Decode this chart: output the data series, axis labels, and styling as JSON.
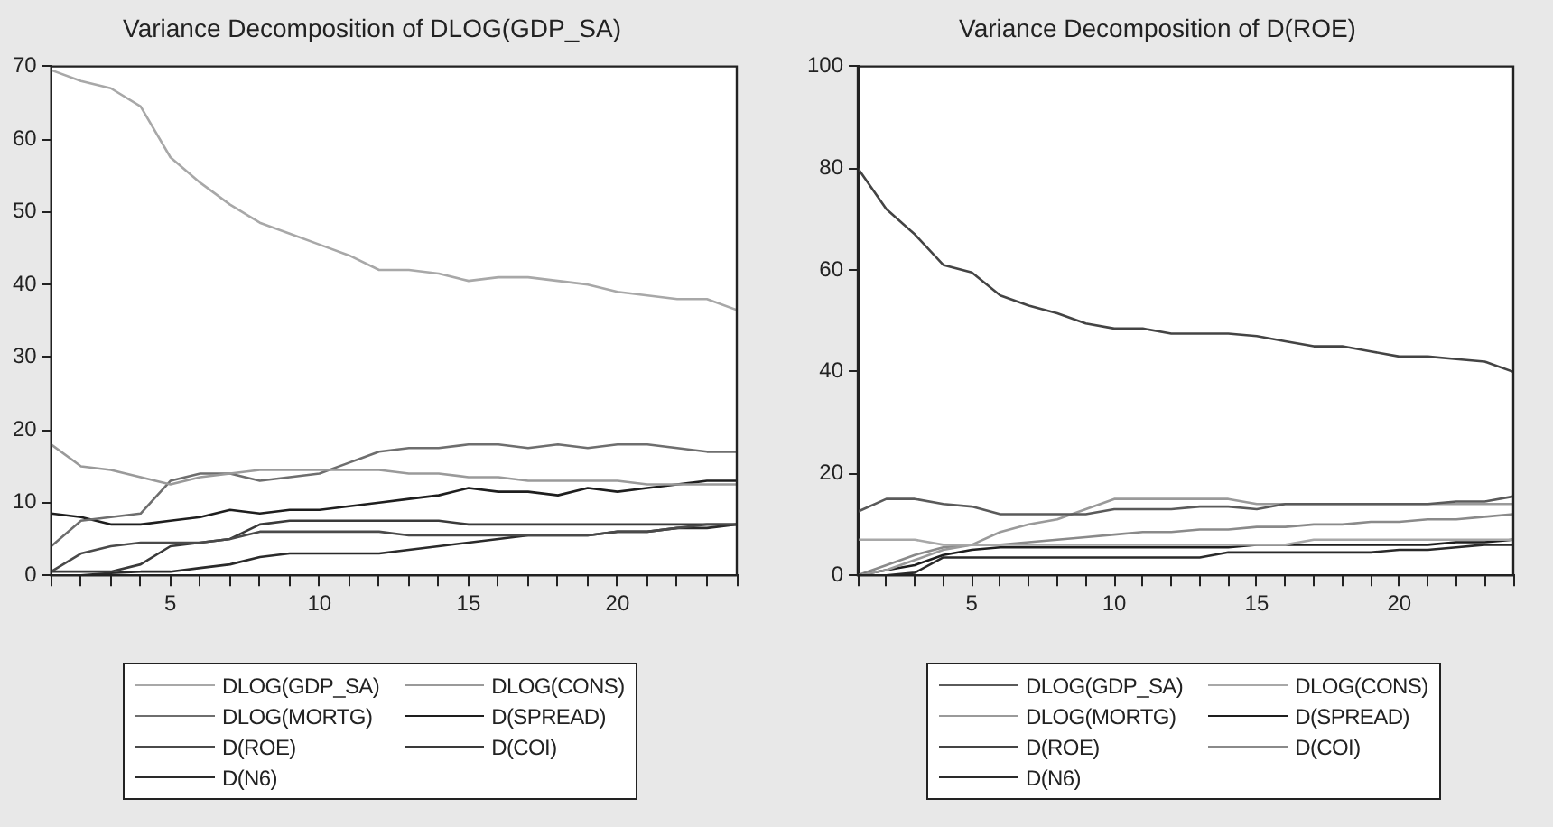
{
  "chart_data": [
    {
      "type": "line",
      "title": "Variance Decomposition of DLOG(GDP_SA)",
      "x": [
        1,
        2,
        3,
        4,
        5,
        6,
        7,
        8,
        9,
        10,
        11,
        12,
        13,
        14,
        15,
        16,
        17,
        18,
        19,
        20,
        21,
        22,
        23,
        24
      ],
      "xlim": [
        1,
        24
      ],
      "xticks": [
        {
          "value": 1,
          "label": null
        },
        {
          "value": 2,
          "label": null
        },
        {
          "value": 3,
          "label": null
        },
        {
          "value": 4,
          "label": null
        },
        5,
        {
          "value": 6,
          "label": null
        },
        {
          "value": 7,
          "label": null
        },
        {
          "value": 8,
          "label": null
        },
        {
          "value": 9,
          "label": null
        },
        10,
        {
          "value": 11,
          "label": null
        },
        {
          "value": 12,
          "label": null
        },
        {
          "value": 13,
          "label": null
        },
        {
          "value": 14,
          "label": null
        },
        15,
        {
          "value": 16,
          "label": null
        },
        {
          "value": 17,
          "label": null
        },
        {
          "value": 18,
          "label": null
        },
        {
          "value": 19,
          "label": null
        },
        20,
        {
          "value": 21,
          "label": null
        },
        {
          "value": 22,
          "label": null
        },
        {
          "value": 23,
          "label": null
        },
        {
          "value": 24,
          "label": null
        }
      ],
      "ylim": [
        0,
        70
      ],
      "yticks": [
        0,
        10,
        20,
        30,
        40,
        50,
        60,
        70
      ],
      "grid": false,
      "legend": "bottom",
      "series": [
        {
          "name": "DLOG(GDP_SA)",
          "color": "#a8a8a8",
          "values": [
            69.5,
            68,
            67,
            64.5,
            57.5,
            54,
            51,
            48.5,
            47,
            45.5,
            44,
            42,
            42,
            41.5,
            40.5,
            41,
            41,
            40.5,
            40,
            39,
            38.5,
            38,
            38,
            36.5
          ]
        },
        {
          "name": "DLOG(CONS)",
          "color": "#9a9a9a",
          "values": [
            18,
            15,
            14.5,
            13.5,
            12.5,
            13.5,
            14,
            14.5,
            14.5,
            14.5,
            14.5,
            14.5,
            14,
            14,
            13.5,
            13.5,
            13,
            13,
            13,
            13,
            12.5,
            12.5,
            12.5,
            12.5
          ]
        },
        {
          "name": "DLOG(MORTG)",
          "color": "#6e6e6e",
          "values": [
            4,
            7.5,
            8,
            8.5,
            13,
            14,
            14,
            13,
            13.5,
            14,
            15.5,
            17,
            17.5,
            17.5,
            18,
            18,
            17.5,
            18,
            17.5,
            18,
            18,
            17.5,
            17,
            17
          ]
        },
        {
          "name": "D(SPREAD)",
          "color": "#1e1e1e",
          "values": [
            8.5,
            8,
            7,
            7,
            7.5,
            8,
            9,
            8.5,
            9,
            9,
            9.5,
            10,
            10.5,
            11,
            12,
            11.5,
            11.5,
            11,
            12,
            11.5,
            12,
            12.5,
            13,
            13
          ]
        },
        {
          "name": "D(ROE)",
          "color": "#4a4a4a",
          "values": [
            0.5,
            3,
            4,
            4.5,
            4.5,
            4.5,
            5,
            6,
            6,
            6,
            6,
            6,
            5.5,
            5.5,
            5.5,
            5.5,
            5.5,
            5.5,
            5.5,
            6,
            6,
            6.5,
            7,
            7
          ]
        },
        {
          "name": "D(COI)",
          "color": "#3a3a3a",
          "values": [
            0.5,
            0.5,
            0.5,
            1.5,
            4,
            4.5,
            5,
            7,
            7.5,
            7.5,
            7.5,
            7.5,
            7.5,
            7.5,
            7,
            7,
            7,
            7,
            7,
            7,
            7,
            7,
            7,
            7
          ]
        },
        {
          "name": "D(N6)",
          "color": "#2a2a2a",
          "values": [
            0,
            0,
            0.3,
            0.5,
            0.5,
            1,
            1.5,
            2.5,
            3,
            3,
            3,
            3,
            3.5,
            4,
            4.5,
            5,
            5.5,
            5.5,
            5.5,
            6,
            6,
            6.5,
            6.5,
            7
          ]
        }
      ]
    },
    {
      "type": "line",
      "title": "Variance Decomposition of D(ROE)",
      "x": [
        1,
        2,
        3,
        4,
        5,
        6,
        7,
        8,
        9,
        10,
        11,
        12,
        13,
        14,
        15,
        16,
        17,
        18,
        19,
        20,
        21,
        22,
        23,
        24
      ],
      "xlim": [
        1,
        24
      ],
      "xticks": [
        {
          "value": 1,
          "label": null
        },
        {
          "value": 2,
          "label": null
        },
        {
          "value": 3,
          "label": null
        },
        {
          "value": 4,
          "label": null
        },
        5,
        {
          "value": 6,
          "label": null
        },
        {
          "value": 7,
          "label": null
        },
        {
          "value": 8,
          "label": null
        },
        {
          "value": 9,
          "label": null
        },
        10,
        {
          "value": 11,
          "label": null
        },
        {
          "value": 12,
          "label": null
        },
        {
          "value": 13,
          "label": null
        },
        {
          "value": 14,
          "label": null
        },
        15,
        {
          "value": 16,
          "label": null
        },
        {
          "value": 17,
          "label": null
        },
        {
          "value": 18,
          "label": null
        },
        {
          "value": 19,
          "label": null
        },
        20,
        {
          "value": 21,
          "label": null
        },
        {
          "value": 22,
          "label": null
        },
        {
          "value": 23,
          "label": null
        },
        {
          "value": 24,
          "label": null
        }
      ],
      "ylim": [
        0,
        100
      ],
      "yticks": [
        0,
        20,
        40,
        60,
        80,
        100
      ],
      "grid": false,
      "legend": "bottom",
      "series": [
        {
          "name": "DLOG(GDP_SA)",
          "color": "#5a5a5a",
          "values": [
            12.5,
            15,
            15,
            14,
            13.5,
            12,
            12,
            12,
            12,
            13,
            13,
            13,
            13.5,
            13.5,
            13,
            14,
            14,
            14,
            14,
            14,
            14,
            14.5,
            14.5,
            15.5
          ]
        },
        {
          "name": "DLOG(CONS)",
          "color": "#a8a8a8",
          "values": [
            7,
            7,
            7,
            6,
            6,
            6,
            6,
            6,
            6,
            6,
            6,
            6,
            6,
            6,
            6,
            6,
            7,
            7,
            7,
            7,
            7,
            7,
            7,
            7
          ]
        },
        {
          "name": "DLOG(MORTG)",
          "color": "#9a9a9a",
          "values": [
            0,
            1,
            3,
            5,
            6,
            8.5,
            10,
            11,
            13,
            15,
            15,
            15,
            15,
            15,
            14,
            14,
            14,
            14,
            14,
            14,
            14,
            14,
            14,
            14
          ]
        },
        {
          "name": "D(SPREAD)",
          "color": "#1e1e1e",
          "values": [
            0,
            1,
            2,
            4,
            5,
            5.5,
            5.5,
            5.5,
            5.5,
            5.5,
            5.5,
            5.5,
            5.5,
            5.5,
            6,
            6,
            6,
            6,
            6,
            6,
            6,
            6.5,
            6.5,
            7
          ]
        },
        {
          "name": "D(ROE)",
          "color": "#444444",
          "values": [
            80,
            72,
            67,
            61,
            59.5,
            55,
            53,
            51.5,
            49.5,
            48.5,
            48.5,
            47.5,
            47.5,
            47.5,
            47,
            46,
            45,
            45,
            44,
            43,
            43,
            42.5,
            42,
            40
          ]
        },
        {
          "name": "D(COI)",
          "color": "#8a8a8a",
          "values": [
            0,
            2,
            4,
            5.5,
            6,
            6,
            6.5,
            7,
            7.5,
            8,
            8.5,
            8.5,
            9,
            9,
            9.5,
            9.5,
            10,
            10,
            10.5,
            10.5,
            11,
            11,
            11.5,
            12
          ]
        },
        {
          "name": "D(N6)",
          "color": "#2a2a2a",
          "values": [
            0,
            0,
            0.5,
            3.5,
            3.5,
            3.5,
            3.5,
            3.5,
            3.5,
            3.5,
            3.5,
            3.5,
            3.5,
            4.5,
            4.5,
            4.5,
            4.5,
            4.5,
            4.5,
            5,
            5,
            5.5,
            6,
            6
          ]
        }
      ]
    }
  ]
}
